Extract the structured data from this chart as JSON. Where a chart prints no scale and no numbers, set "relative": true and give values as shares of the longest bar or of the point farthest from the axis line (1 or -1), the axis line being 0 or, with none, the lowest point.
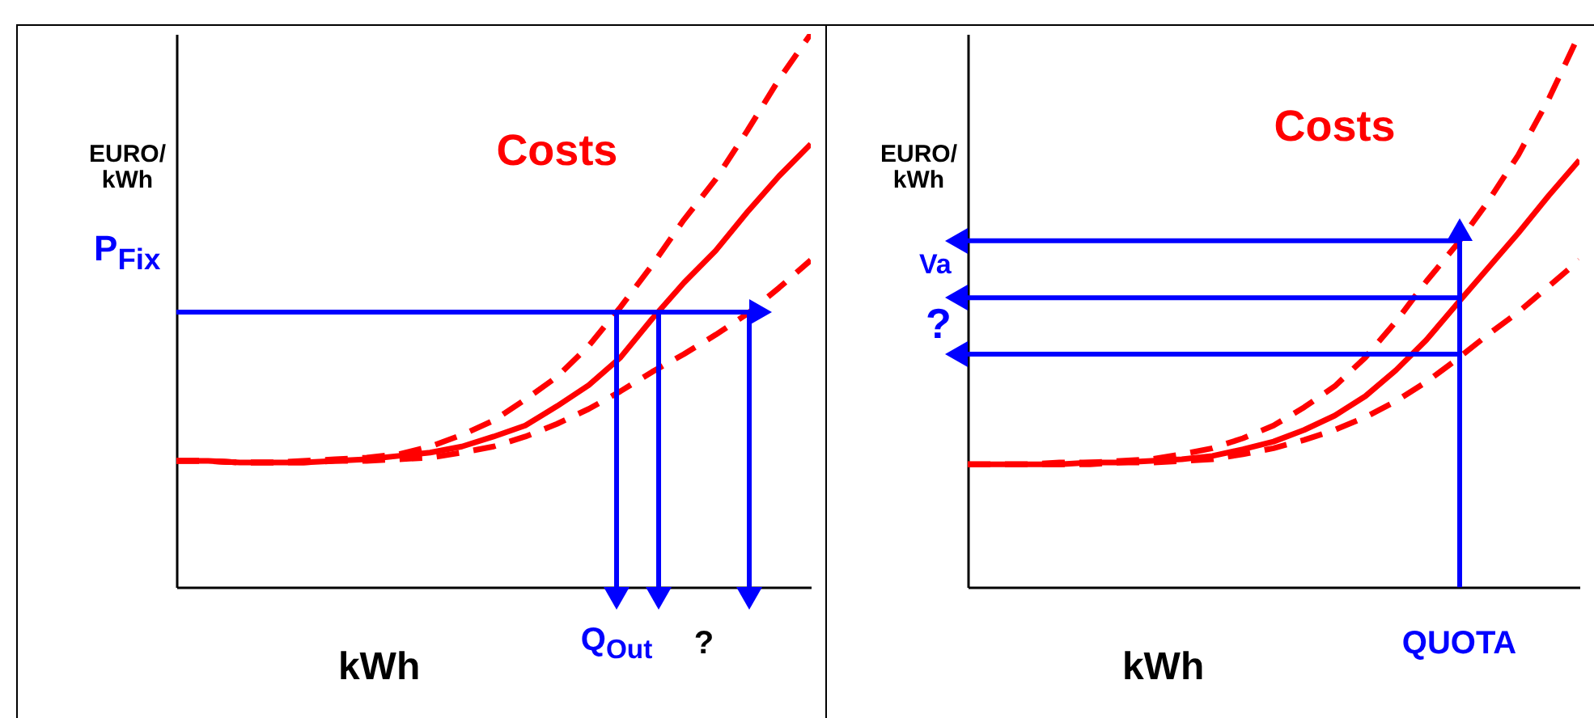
{
  "chart_data": [
    {
      "type": "line",
      "relative": true,
      "xlabel": "kWh",
      "ylabel": "EURO/kWh",
      "grid": false,
      "marker": "none",
      "categories": [
        null,
        null,
        null,
        null,
        null,
        null,
        null,
        null,
        null,
        null,
        null,
        null,
        null,
        null,
        null,
        null,
        null,
        null,
        null,
        null,
        null
      ],
      "series": [
        {
          "color": "#ff0000",
          "line_style": "dashed",
          "values": [
            0.228,
            0.228,
            0.225,
            0.225,
            0.228,
            0.231,
            0.234,
            0.24,
            0.254,
            0.275,
            0.301,
            0.339,
            0.38,
            0.436,
            0.506,
            0.582,
            0.664,
            0.737,
            0.825,
            0.918,
            1.0
          ]
        },
        {
          "color": "#ff0000",
          "line_style": "solid",
          "values": [
            0.228,
            0.228,
            0.225,
            0.225,
            0.225,
            0.228,
            0.231,
            0.237,
            0.243,
            0.254,
            0.272,
            0.292,
            0.327,
            0.365,
            0.415,
            0.485,
            0.55,
            0.608,
            0.678,
            0.743,
            0.801
          ]
        },
        {
          "color": "#ff0000",
          "line_style": "dashed",
          "values": [
            0.228,
            0.228,
            0.225,
            0.225,
            0.225,
            0.228,
            0.228,
            0.231,
            0.234,
            0.243,
            0.254,
            0.272,
            0.295,
            0.322,
            0.354,
            0.389,
            0.421,
            0.456,
            0.494,
            0.541,
            0.591
          ]
        }
      ],
      "ref_lines": [
        {
          "axis": "y",
          "value": 0.497,
          "label": "P$_{Fix}$",
          "color": "#0000ff"
        }
      ],
      "annotations": [
        "Costs",
        "Q$_{Out}$",
        "?"
      ]
    },
    {
      "type": "line",
      "relative": true,
      "xlabel": "kWh",
      "ylabel": "EURO/kWh",
      "grid": false,
      "marker": "none",
      "categories": [
        null,
        null,
        null,
        null,
        null,
        null,
        null,
        null,
        null,
        null,
        null,
        null,
        null,
        null,
        null,
        null,
        null,
        null,
        null,
        null,
        null
      ],
      "series": [
        {
          "color": "#ff0000",
          "line_style": "dashed",
          "values": [
            0.222,
            0.222,
            0.222,
            0.225,
            0.225,
            0.228,
            0.231,
            0.24,
            0.251,
            0.269,
            0.292,
            0.325,
            0.363,
            0.415,
            0.48,
            0.553,
            0.62,
            0.696,
            0.781,
            0.883,
            1.0
          ]
        },
        {
          "color": "#ff0000",
          "line_style": "solid",
          "values": [
            0.222,
            0.222,
            0.222,
            0.222,
            0.225,
            0.225,
            0.228,
            0.231,
            0.237,
            0.249,
            0.263,
            0.284,
            0.31,
            0.345,
            0.392,
            0.447,
            0.512,
            0.576,
            0.64,
            0.708,
            0.772
          ]
        },
        {
          "color": "#ff0000",
          "line_style": "dashed",
          "values": [
            0.222,
            0.222,
            0.222,
            0.222,
            0.222,
            0.225,
            0.225,
            0.228,
            0.231,
            0.24,
            0.251,
            0.266,
            0.284,
            0.307,
            0.336,
            0.371,
            0.412,
            0.456,
            0.497,
            0.544,
            0.591
          ]
        }
      ],
      "ref_lines": [
        {
          "axis": "y",
          "value": 0.626,
          "label": "Va",
          "color": "#0000ff"
        },
        {
          "axis": "y",
          "value": 0.523,
          "label": "?",
          "color": "#0000ff"
        },
        {
          "axis": "y",
          "value": 0.421,
          "label": null,
          "color": "#0000ff"
        }
      ],
      "annotations": [
        "Costs",
        "QUOTA"
      ]
    }
  ]
}
